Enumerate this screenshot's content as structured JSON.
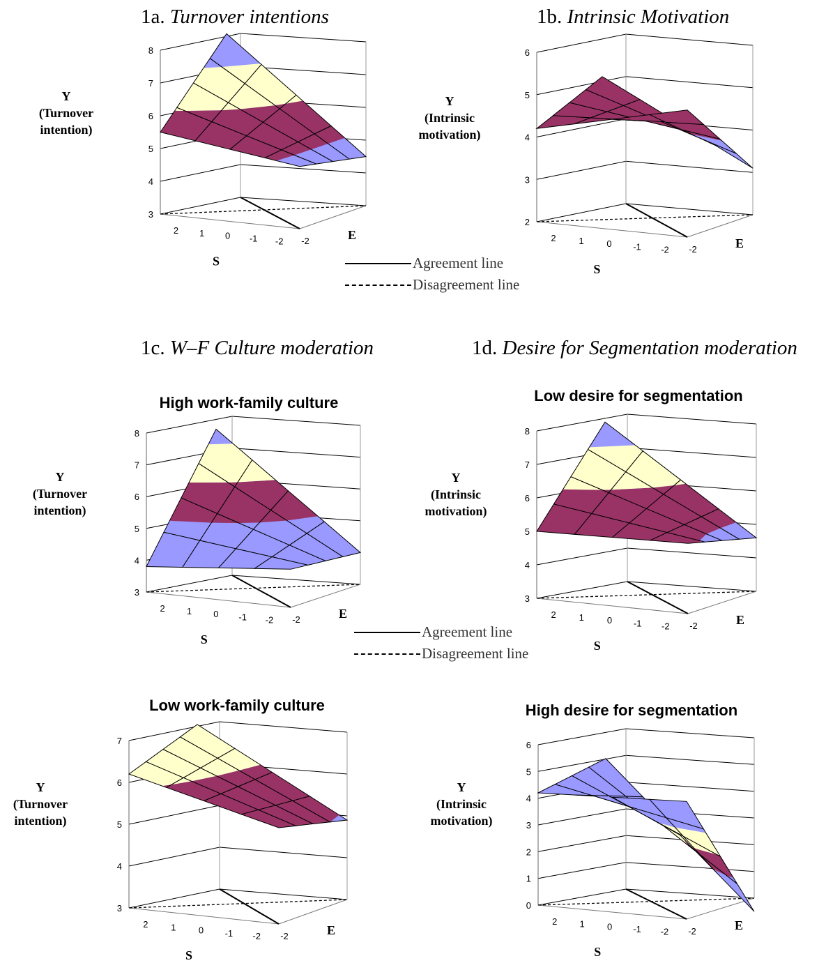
{
  "headings": {
    "a": {
      "num": "1a.",
      "name": "Turnover intentions"
    },
    "b": {
      "num": "1b.",
      "name": "Intrinsic Motivation"
    },
    "c": {
      "num": "1c.",
      "name": "W–F Culture moderation"
    },
    "d": {
      "num": "1d.",
      "name": "Desire for Segmentation moderation"
    }
  },
  "legend": {
    "agreement": "Agreement line",
    "disagreement": "Disagreement line"
  },
  "colors": {
    "high_band": "#9999ff",
    "mid_band": "#ffffcc",
    "low_band": "#993366",
    "grid": "#000000"
  },
  "axis_labels": {
    "s": "S",
    "e": "E"
  },
  "chart_data": [
    {
      "id": "a",
      "type": "surface",
      "title": "",
      "subtitle": "",
      "ylabel": [
        "Y",
        "(Turnover",
        "intention)"
      ],
      "xlabel": "S",
      "zlabel": "E",
      "s_ticks": [
        "2",
        "1",
        "0",
        "-1",
        "-2"
      ],
      "e_ticks": [
        "-2"
      ],
      "ylim": [
        3,
        8
      ],
      "yticks": [
        "3",
        "4",
        "5",
        "6",
        "7",
        "8"
      ],
      "bands": [
        [
          5,
          6,
          "low"
        ],
        [
          6,
          7,
          "mid"
        ]
      ],
      "corners": {
        "s2_e-2": 5.5,
        "s2_e2": 7.8,
        "s-2_e-2": 4.9,
        "s-2_e2": 4.5
      }
    },
    {
      "id": "b",
      "type": "surface",
      "title": "",
      "subtitle": "",
      "ylabel": [
        "Y",
        "(Intrinsic",
        "motivation)"
      ],
      "xlabel": "S",
      "zlabel": "E",
      "s_ticks": [
        "2",
        "1",
        "0",
        "-1",
        "-2"
      ],
      "e_ticks": [
        "-2"
      ],
      "ylim": [
        2,
        6
      ],
      "yticks": [
        "2",
        "3",
        "4",
        "5",
        "6"
      ],
      "bands": [
        [
          4,
          5,
          "low"
        ],
        [
          5,
          6,
          "mid"
        ]
      ],
      "corners": {
        "s2_e-2": 4.2,
        "s2_e2": 4.9,
        "s-2_e-2": 5.0,
        "s-2_e2": 3.1
      }
    },
    {
      "id": "c-high",
      "type": "surface",
      "title": "",
      "subtitle": "High work-family culture",
      "ylabel": [
        "Y",
        "(Turnover",
        "intention)"
      ],
      "xlabel": "S",
      "zlabel": "E",
      "s_ticks": [
        "2",
        "1",
        "0",
        "-1",
        "-2"
      ],
      "e_ticks": [
        "-2"
      ],
      "ylim": [
        3,
        8
      ],
      "yticks": [
        "3",
        "4",
        "5",
        "6",
        "7",
        "8"
      ],
      "bands": [
        [
          5,
          6,
          "low"
        ],
        [
          6,
          7,
          "mid"
        ]
      ],
      "corners": {
        "s2_e-2": 3.8,
        "s2_e2": 7.4,
        "s-2_e-2": 4.2,
        "s-2_e2": 4.0
      }
    },
    {
      "id": "c-low",
      "type": "surface",
      "title": "",
      "subtitle": "Low work-family culture",
      "ylabel": [
        "Y",
        "(Turnover",
        "intention)"
      ],
      "xlabel": "S",
      "zlabel": "E",
      "s_ticks": [
        "2",
        "1",
        "0",
        "-1",
        "-2"
      ],
      "e_ticks": [
        "-2"
      ],
      "ylim": [
        3,
        7
      ],
      "yticks": [
        "3",
        "4",
        "5",
        "6",
        "7"
      ],
      "bands": [
        [
          5,
          6,
          "low"
        ],
        [
          6,
          7,
          "mid"
        ]
      ],
      "corners": {
        "s2_e-2": 6.2,
        "s2_e2": 6.8,
        "s-2_e-2": 5.3,
        "s-2_e2": 4.9
      }
    },
    {
      "id": "d-low",
      "type": "surface",
      "title": "",
      "subtitle": "Low desire for segmentation",
      "ylabel": [
        "Y",
        "(Intrinsic",
        "motivation)"
      ],
      "xlabel": "S",
      "zlabel": "E",
      "s_ticks": [
        "2",
        "1",
        "0",
        "-1",
        "-2"
      ],
      "e_ticks": [
        "-2"
      ],
      "ylim": [
        3,
        8
      ],
      "yticks": [
        "3",
        "4",
        "5",
        "6",
        "7",
        "8"
      ],
      "bands": [
        [
          5,
          6,
          "low"
        ],
        [
          6,
          7,
          "mid"
        ]
      ],
      "corners": {
        "s2_e-2": 5.0,
        "s2_e2": 7.6,
        "s-2_e-2": 5.1,
        "s-2_e2": 4.6
      }
    },
    {
      "id": "d-high",
      "type": "surface",
      "title": "",
      "subtitle": "High desire for segmentation",
      "ylabel": [
        "Y",
        "(Intrinsic",
        "motivation)"
      ],
      "xlabel": "S",
      "zlabel": "E",
      "s_ticks": [
        "2",
        "1",
        "0",
        "-1",
        "-2"
      ],
      "e_ticks": [
        "-2"
      ],
      "ylim": [
        0,
        6
      ],
      "yticks": [
        "0",
        "1",
        "2",
        "3",
        "4",
        "5",
        "6"
      ],
      "bands": [
        [
          3,
          4,
          "high"
        ],
        [
          2,
          3,
          "mid"
        ],
        [
          1,
          2,
          "low"
        ]
      ],
      "corners": {
        "s2_e-2": 4.2,
        "s2_e2": 4.7,
        "s-2_e-2": 4.4,
        "s-2_e2": -0.5
      }
    }
  ]
}
